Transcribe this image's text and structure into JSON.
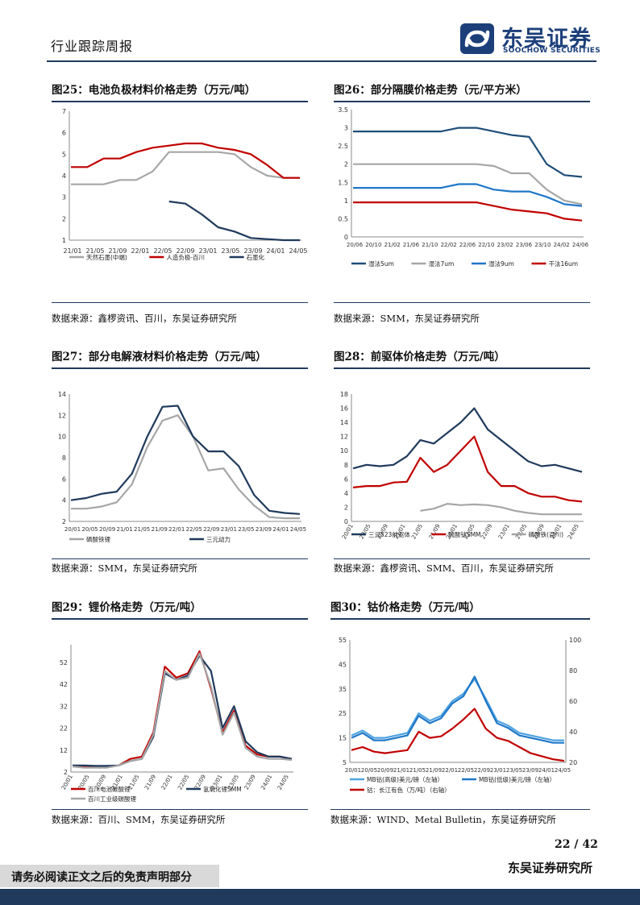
{
  "header": {
    "section": "行业跟踪周报",
    "brand_cn": "东吴证券",
    "brand_en": "SOOCHOW SECURITIES"
  },
  "colors": {
    "navy": "#1f3a5c",
    "red": "#c00000",
    "gray": "#a6a6a6",
    "blue": "#1f77c8",
    "lightblue": "#4ea3e0"
  },
  "panels": [
    {
      "title": "图25：电池负极材料价格走势（万元/吨）",
      "source": "数据来源：鑫椤资讯、百川，东吴证券研究所",
      "chart_data": {
        "type": "line",
        "x_ticks": [
          "21/01",
          "21/05",
          "21/09",
          "22/01",
          "22/05",
          "22/09",
          "23/01",
          "23/05",
          "23/09",
          "24/01",
          "24/05"
        ],
        "y_ticks": [
          "1",
          "2",
          "3",
          "4",
          "5",
          "6",
          "7"
        ],
        "ylim": [
          1,
          7
        ],
        "series": [
          {
            "name": "天然石墨(中端)",
            "color": "#a6a6a6",
            "values": [
              3.6,
              3.6,
              3.6,
              3.8,
              3.8,
              4.2,
              5.1,
              5.1,
              5.1,
              5.1,
              5.0,
              4.4,
              4.0,
              3.9,
              3.9
            ]
          },
          {
            "name": "人造负极-百川",
            "color": "#c00000",
            "values": [
              4.4,
              4.4,
              4.8,
              4.8,
              5.1,
              5.3,
              5.4,
              5.5,
              5.5,
              5.3,
              5.2,
              5.0,
              4.5,
              3.9,
              3.9
            ]
          },
          {
            "name": "石墨化",
            "color": "#1f3a5c",
            "values": [
              null,
              null,
              null,
              null,
              null,
              null,
              2.8,
              2.7,
              2.2,
              1.6,
              1.4,
              1.1,
              1.05,
              1.0,
              1.0
            ]
          }
        ]
      }
    },
    {
      "title": "图26：部分隔膜价格走势（元/平方米）",
      "source": "数据来源：SMM，东吴证券研究所",
      "chart_data": {
        "type": "line",
        "x_ticks": [
          "20/06",
          "20/10",
          "21/02",
          "21/06",
          "21/10",
          "22/02",
          "22/06",
          "22/10",
          "23/02",
          "23/06",
          "23/10",
          "24/02",
          "24/06"
        ],
        "y_ticks": [
          "0",
          "0.5",
          "1",
          "1.5",
          "2",
          "2.5",
          "3",
          "3.5"
        ],
        "ylim": [
          0,
          3.5
        ],
        "series": [
          {
            "name": "湿法5um",
            "color": "#1f4e79",
            "values": [
              2.9,
              2.9,
              2.9,
              2.9,
              2.9,
              2.9,
              3.0,
              3.0,
              2.9,
              2.8,
              2.75,
              2.0,
              1.7,
              1.65
            ]
          },
          {
            "name": "湿法7um",
            "color": "#a6a6a6",
            "values": [
              2.0,
              2.0,
              2.0,
              2.0,
              2.0,
              2.0,
              2.0,
              2.0,
              1.95,
              1.75,
              1.75,
              1.3,
              1.0,
              0.9
            ]
          },
          {
            "name": "湿法9um",
            "color": "#1f77c8",
            "values": [
              1.35,
              1.35,
              1.35,
              1.35,
              1.35,
              1.35,
              1.45,
              1.45,
              1.3,
              1.25,
              1.25,
              1.1,
              0.9,
              0.85
            ]
          },
          {
            "name": "干法16um",
            "color": "#c00000",
            "values": [
              0.95,
              0.95,
              0.95,
              0.95,
              0.95,
              0.95,
              0.95,
              0.95,
              0.85,
              0.75,
              0.7,
              0.65,
              0.5,
              0.45
            ]
          }
        ]
      }
    },
    {
      "title": "图27：部分电解液材料价格走势（万元/吨）",
      "source": "数据来源：SMM，东吴证券研究所",
      "chart_data": {
        "type": "line",
        "x_ticks": [
          "20/01",
          "20/05",
          "20/09",
          "21/01",
          "21/05",
          "21/09",
          "22/01",
          "22/05",
          "22/09",
          "23/01",
          "23/05",
          "23/09",
          "24/01",
          "24/05"
        ],
        "y_ticks": [
          "2",
          "4",
          "6",
          "8",
          "10",
          "12",
          "14"
        ],
        "ylim": [
          2,
          14
        ],
        "series": [
          {
            "name": "磷酸铁锂",
            "color": "#a6a6a6",
            "values": [
              3.2,
              3.2,
              3.4,
              3.8,
              5.5,
              9.0,
              11.5,
              12.0,
              10.0,
              6.8,
              7.0,
              5.0,
              3.5,
              2.4,
              2.3,
              2.3
            ]
          },
          {
            "name": "三元动力",
            "color": "#1f3a5c",
            "values": [
              4.0,
              4.2,
              4.6,
              4.8,
              6.5,
              10.0,
              12.8,
              12.9,
              10.0,
              8.6,
              8.6,
              7.2,
              4.5,
              3.0,
              2.8,
              2.7
            ]
          }
        ]
      }
    },
    {
      "title": "图28：前驱体价格走势（万元/吨）",
      "source": "数据来源：鑫椤资讯、SMM、百川，东吴证券研究所",
      "chart_data": {
        "type": "line",
        "x_ticks": [
          "20/01",
          "20/05",
          "20/09",
          "21/01",
          "21/05",
          "21/09",
          "22/01",
          "22/05",
          "22/09",
          "23/01",
          "23/05",
          "23/09",
          "24/01",
          "24/05"
        ],
        "y_ticks": [
          "0",
          "2",
          "4",
          "6",
          "8",
          "10",
          "12",
          "14",
          "16",
          "18"
        ],
        "ylim": [
          0,
          18
        ],
        "series": [
          {
            "name": "三元523前驱体",
            "color": "#1f3a5c",
            "values": [
              7.5,
              8.0,
              7.8,
              8.0,
              9.2,
              11.5,
              11.0,
              12.5,
              14.0,
              16.0,
              13.0,
              11.5,
              10.0,
              8.5,
              7.8,
              8.0,
              7.5,
              7.0
            ]
          },
          {
            "name": "硫酸钴SMM",
            "color": "#c00000",
            "values": [
              4.8,
              5.0,
              5.0,
              5.5,
              5.6,
              9.0,
              7.0,
              8.0,
              10.0,
              12.0,
              7.0,
              5.0,
              5.0,
              4.0,
              3.5,
              3.5,
              3.0,
              2.8
            ]
          },
          {
            "name": "磷酸铁(百川)",
            "color": "#a6a6a6",
            "values": [
              null,
              null,
              null,
              null,
              null,
              1.5,
              1.8,
              2.5,
              2.3,
              2.4,
              2.3,
              2.0,
              1.5,
              1.2,
              1.0,
              1.0,
              1.0,
              1.0
            ]
          }
        ]
      }
    },
    {
      "title": "图29：锂价格走势（万元/吨）",
      "source": "数据来源：百川、SMM，东吴证券研究所",
      "chart_data": {
        "type": "line",
        "x_ticks": [
          "20/01",
          "20/05",
          "20/09",
          "21/01",
          "21/05",
          "21/09",
          "22/01",
          "22/05",
          "22/09",
          "23/01",
          "23/05",
          "23/09",
          "24/01",
          "24/05"
        ],
        "y_ticks": [
          "2",
          "12",
          "22",
          "32",
          "42",
          "52"
        ],
        "ylim": [
          2,
          60
        ],
        "series": [
          {
            "name": "百川电池碳酸锂",
            "color": "#c00000",
            "values": [
              5,
              4.5,
              4.5,
              4.5,
              5,
              8,
              9,
              20,
              50,
              45,
              47,
              57,
              40,
              20,
              30,
              14,
              10,
              9,
              9,
              8
            ]
          },
          {
            "name": "氢氧化锂SMM",
            "color": "#1f3a5c",
            "values": [
              5,
              5,
              4.8,
              4.8,
              5,
              7,
              8,
              18,
              47,
              44,
              46,
              55,
              48,
              22,
              32,
              16,
              11,
              9,
              9,
              8
            ]
          },
          {
            "name": "百川工业级碳酸锂",
            "color": "#a6a6a6",
            "values": [
              4.5,
              4,
              4,
              4,
              5,
              7,
              8,
              19,
              48,
              44,
              45,
              56,
              41,
              19,
              29,
              13,
              9,
              8,
              8,
              7.5
            ]
          }
        ]
      }
    },
    {
      "title": "图30：钴价格走势（万元/吨）",
      "source": "数据来源：WIND、Metal Bulletin，东吴证券研究所",
      "chart_data": {
        "type": "line",
        "x_ticks": [
          "20/01",
          "20/05",
          "20/09",
          "21/01",
          "21/05",
          "21/09",
          "22/01",
          "22/05",
          "22/09",
          "23/01",
          "23/05",
          "23/09",
          "24/01",
          "24/05"
        ],
        "y_ticks": [
          "5",
          "15",
          "25",
          "35",
          "45",
          "55"
        ],
        "y2_ticks": [
          "20",
          "40",
          "60",
          "80",
          "100"
        ],
        "ylim": [
          5,
          55
        ],
        "y2lim": [
          20,
          100
        ],
        "series": [
          {
            "name": "MB钴(高级)美元/磅（左轴）",
            "color": "#4ea3e0",
            "values": [
              16,
              18,
              15,
              15,
              16,
              17,
              25,
              22,
              24,
              30,
              33,
              39,
              31,
              22,
              20,
              17,
              16,
              15,
              14,
              14
            ]
          },
          {
            "name": "MB钴(低级)美元/磅（左轴）",
            "color": "#1f77c8",
            "values": [
              15,
              17,
              14,
              14,
              15,
              16,
              24,
              21,
              23,
              29,
              32,
              40,
              30,
              21,
              19,
              16,
              15,
              14,
              13,
              13
            ]
          },
          {
            "name": "钴：长江有色（万/吨）（右轴）",
            "color": "#c00000",
            "values": [
              28,
              30,
              27,
              26,
              27,
              28,
              40,
              36,
              37,
              42,
              48,
              55,
              42,
              36,
              34,
              30,
              26,
              24,
              22,
              21
            ]
          }
        ]
      }
    }
  ],
  "footer": {
    "page": "22 / 42",
    "disclaimer": "请务必阅读正文之后的免责声明部分",
    "org": "东吴证券研究所"
  }
}
